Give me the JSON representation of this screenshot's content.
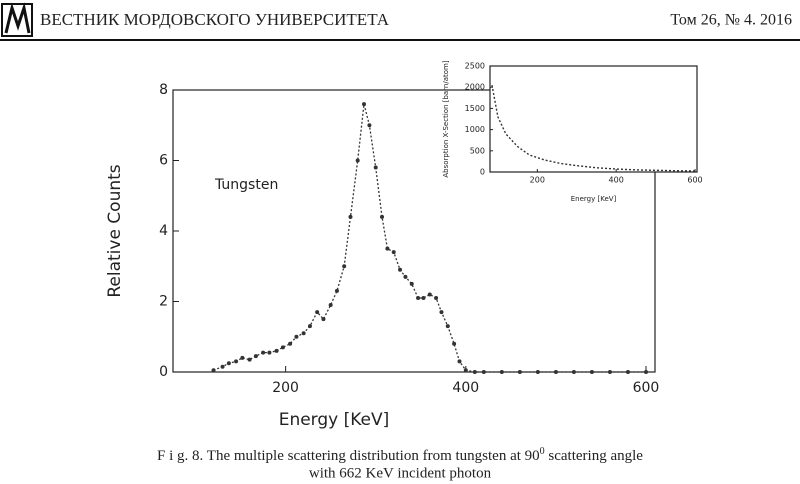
{
  "header": {
    "journal": "ВЕСТНИК МОРДОВСКОГО УНИВЕРСИТЕТА",
    "issue": "Том 26, № 4. 2016"
  },
  "chart_data": [
    {
      "type": "line",
      "ylabel": "Relative Counts",
      "xlabel": "Energy [KeV]",
      "annotation": "Tungsten",
      "color": "#333333",
      "xlim": [
        75,
        610
      ],
      "ylim": [
        0,
        8
      ],
      "xticks": [
        200,
        400,
        600
      ],
      "yticks": [
        0,
        2,
        4,
        6,
        8
      ],
      "x": [
        120,
        130,
        137,
        145,
        152,
        160,
        167,
        175,
        182,
        190,
        197,
        205,
        212,
        220,
        227,
        235,
        242,
        250,
        257,
        265,
        272,
        280,
        287,
        293,
        300,
        307,
        313,
        320,
        327,
        333,
        340,
        347,
        353,
        360,
        367,
        373,
        380,
        387,
        393,
        400,
        410,
        420,
        440,
        460,
        480,
        500,
        520,
        540,
        560,
        580,
        600
      ],
      "values": [
        0.05,
        0.15,
        0.25,
        0.3,
        0.4,
        0.35,
        0.45,
        0.55,
        0.55,
        0.6,
        0.7,
        0.8,
        1.0,
        1.1,
        1.3,
        1.7,
        1.5,
        1.9,
        2.3,
        3.0,
        4.4,
        6.0,
        7.6,
        7.0,
        5.8,
        4.4,
        3.5,
        3.4,
        2.9,
        2.7,
        2.5,
        2.1,
        2.1,
        2.2,
        2.1,
        1.7,
        1.3,
        0.8,
        0.3,
        0.05,
        0,
        0,
        0,
        0,
        0,
        0,
        0,
        0,
        0,
        0,
        0
      ]
    },
    {
      "type": "line",
      "ylabel": "Absorption X-Section [barn/atom]",
      "xlabel": "Energy [KeV]",
      "color": "#333333",
      "xlim": [
        80,
        605
      ],
      "ylim": [
        0,
        2500
      ],
      "xticks": [
        200,
        400,
        600
      ],
      "yticks": [
        0,
        500,
        1000,
        1500,
        2000,
        2500
      ],
      "x": [
        85,
        100,
        120,
        150,
        180,
        220,
        260,
        300,
        350,
        400,
        450,
        500,
        550,
        600
      ],
      "values": [
        2050,
        1300,
        900,
        600,
        400,
        280,
        200,
        150,
        100,
        70,
        50,
        40,
        30,
        25
      ]
    }
  ],
  "caption": {
    "before": "F i g. 8. The multiple scattering distribution from tungsten at 90",
    "superscript": "0",
    "after": " scattering angle",
    "line2": "with 662 KeV incident photon"
  }
}
